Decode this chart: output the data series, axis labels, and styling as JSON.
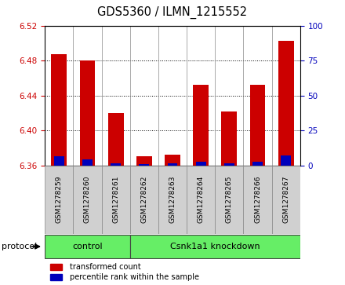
{
  "title": "GDS5360 / ILMN_1215552",
  "samples": [
    "GSM1278259",
    "GSM1278260",
    "GSM1278261",
    "GSM1278262",
    "GSM1278263",
    "GSM1278264",
    "GSM1278265",
    "GSM1278266",
    "GSM1278267"
  ],
  "red_values": [
    6.487,
    6.48,
    6.42,
    6.37,
    6.372,
    6.452,
    6.422,
    6.452,
    6.503
  ],
  "blue_values": [
    6.37,
    6.367,
    6.362,
    6.361,
    6.362,
    6.364,
    6.362,
    6.364,
    6.371
  ],
  "ylim_left": [
    6.36,
    6.52
  ],
  "ylim_right": [
    0,
    100
  ],
  "yticks_left": [
    6.36,
    6.4,
    6.44,
    6.48,
    6.52
  ],
  "yticks_right": [
    0,
    25,
    50,
    75,
    100
  ],
  "red_color": "#CC0000",
  "blue_color": "#0000BB",
  "bar_bottom": 6.36,
  "bar_width": 0.55,
  "blue_bar_width": 0.35,
  "protocol_label": "protocol",
  "control_label": "control",
  "kd_label": "Csnk1a1 knockdown",
  "n_control": 3,
  "legend_red": "transformed count",
  "legend_blue": "percentile rank within the sample",
  "tick_label_color_left": "#CC0000",
  "tick_label_color_right": "#0000BB",
  "green_color": "#66EE66",
  "gray_color": "#D0D0D0"
}
